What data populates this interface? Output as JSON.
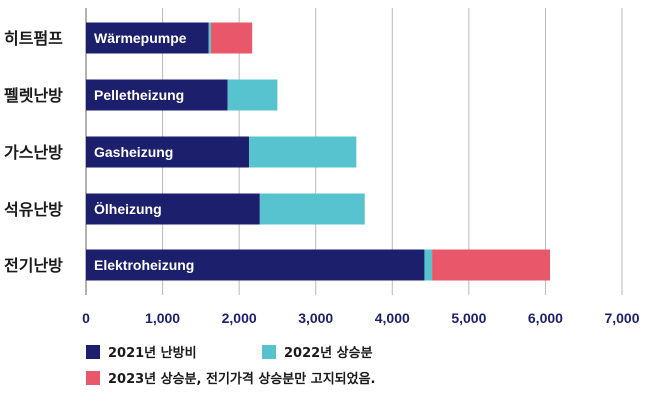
{
  "chart_data": {
    "type": "bar",
    "orientation": "horizontal",
    "stacked": true,
    "categories": [
      "히트펌프",
      "펠렛난방",
      "가스난방",
      "석유난방",
      "전기난방"
    ],
    "bar_labels": [
      "Wärmepumpe",
      "Pelletheizung",
      "Gasheizung",
      "Ölheizung",
      "Elektroheizung"
    ],
    "series": [
      {
        "name": "2021년 난방비",
        "color": "#1c1f6b",
        "values": [
          1600,
          1850,
          2130,
          2270,
          4420
        ]
      },
      {
        "name": "2022년 상승분",
        "color": "#56c3cf",
        "values": [
          30,
          650,
          1400,
          1370,
          100
        ]
      },
      {
        "name": "2023년 상승분, 전기가격 상승분만 고지되었음.",
        "color": "#e8576a",
        "values": [
          540,
          0,
          0,
          0,
          1540
        ]
      }
    ],
    "xlim": [
      0,
      7000
    ],
    "xticks": [
      0,
      1000,
      2000,
      3000,
      4000,
      5000,
      6000,
      7000
    ],
    "xtick_labels": [
      "0",
      "1,000",
      "2,000",
      "3,000",
      "4,000",
      "5,000",
      "6,000",
      "7,000"
    ],
    "grid": true,
    "legend_position": "bottom"
  }
}
